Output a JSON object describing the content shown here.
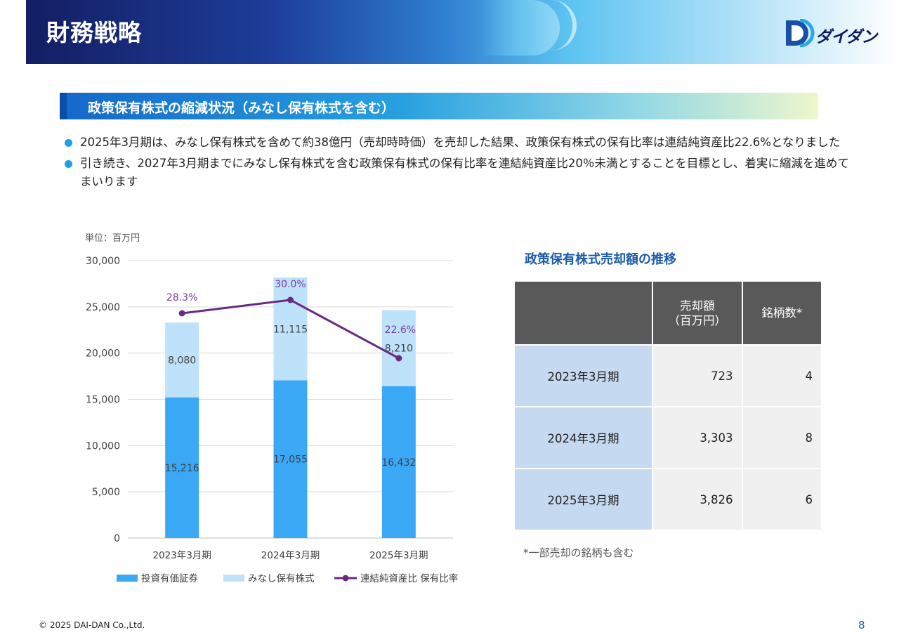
{
  "header": {
    "title": "財務戦略",
    "logo_text": "ダイダン"
  },
  "section": {
    "title": "政策保有株式の縮減状況（みなし保有株式を含む）"
  },
  "bullets": [
    "2025年3月期は、みなし保有株式を含めて約38億円（売却時時価）を売却した結果、政策保有株式の保有比率は連結純資産比22.6%となりました",
    "引き続き、2027年3月期までにみなし保有株式を含む政策保有株式の保有比率を連結純資産比20％未満とすることを目標とし、着実に縮減を進めてまいります"
  ],
  "chart_data": {
    "type": "bar",
    "stacked": true,
    "unit_label": "単位：百万円",
    "categories": [
      "2023年3月期",
      "2024年3月期",
      "2025年3月期"
    ],
    "ylim": [
      0,
      30000
    ],
    "yticks": [
      0,
      5000,
      10000,
      15000,
      20000,
      25000,
      30000
    ],
    "ytick_labels": [
      "0",
      "5,000",
      "10,000",
      "15,000",
      "20,000",
      "25,000",
      "30,000"
    ],
    "series": [
      {
        "name": "投資有価証券",
        "type": "bar",
        "color": "#3aa8f5",
        "values": [
          15216,
          17055,
          16432
        ],
        "labels": [
          "15,216",
          "17,055",
          "16,432"
        ]
      },
      {
        "name": "みなし保有株式",
        "type": "bar",
        "color": "#bfe2fb",
        "values": [
          8080,
          11115,
          8210
        ],
        "labels": [
          "8,080",
          "11,115",
          "8,210"
        ]
      },
      {
        "name": "連結純資産比 保有比率",
        "type": "line",
        "color": "#6a2a82",
        "values": [
          28.3,
          30.0,
          22.6
        ],
        "labels": [
          "28.3%",
          "30.0%",
          "22.6%"
        ]
      }
    ],
    "grid": true,
    "legend": "bottom"
  },
  "table": {
    "title": "政策保有株式売却額の推移",
    "headers": [
      "",
      "売却額\n（百万円）",
      "銘柄数*"
    ],
    "rows": [
      {
        "period": "2023年3月期",
        "amount": "723",
        "count": "4"
      },
      {
        "period": "2024年3月期",
        "amount": "3,303",
        "count": "8"
      },
      {
        "period": "2025年3月期",
        "amount": "3,826",
        "count": "6"
      }
    ],
    "footnote": "*一部売却の銘柄も含む"
  },
  "footer": {
    "copyright": "© 2025 DAI-DAN Co.,Ltd.",
    "page": "8"
  }
}
